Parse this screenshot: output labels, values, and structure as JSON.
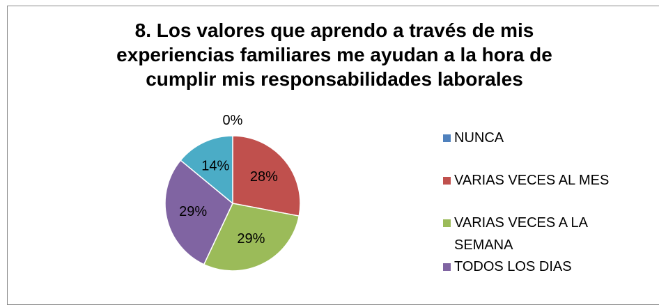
{
  "chart_data": {
    "type": "pie",
    "title": "8. Los valores que aprendo a través de mis experiencias familiares me ayudan a la hora de cumplir mis responsabilidades laborales",
    "categories": [
      "NUNCA",
      "VARIAS VECES AL MES",
      "VARIAS VECES A LA SEMANA",
      "TODOS LOS DIAS",
      null
    ],
    "values": [
      0,
      28,
      29,
      29,
      14
    ],
    "value_labels": [
      "0%",
      "28%",
      "29%",
      "29%",
      "14%"
    ],
    "colors": [
      "#4f81bd",
      "#c0504d",
      "#9bbb59",
      "#8064a2",
      "#4bacc6"
    ],
    "legend": "right"
  }
}
